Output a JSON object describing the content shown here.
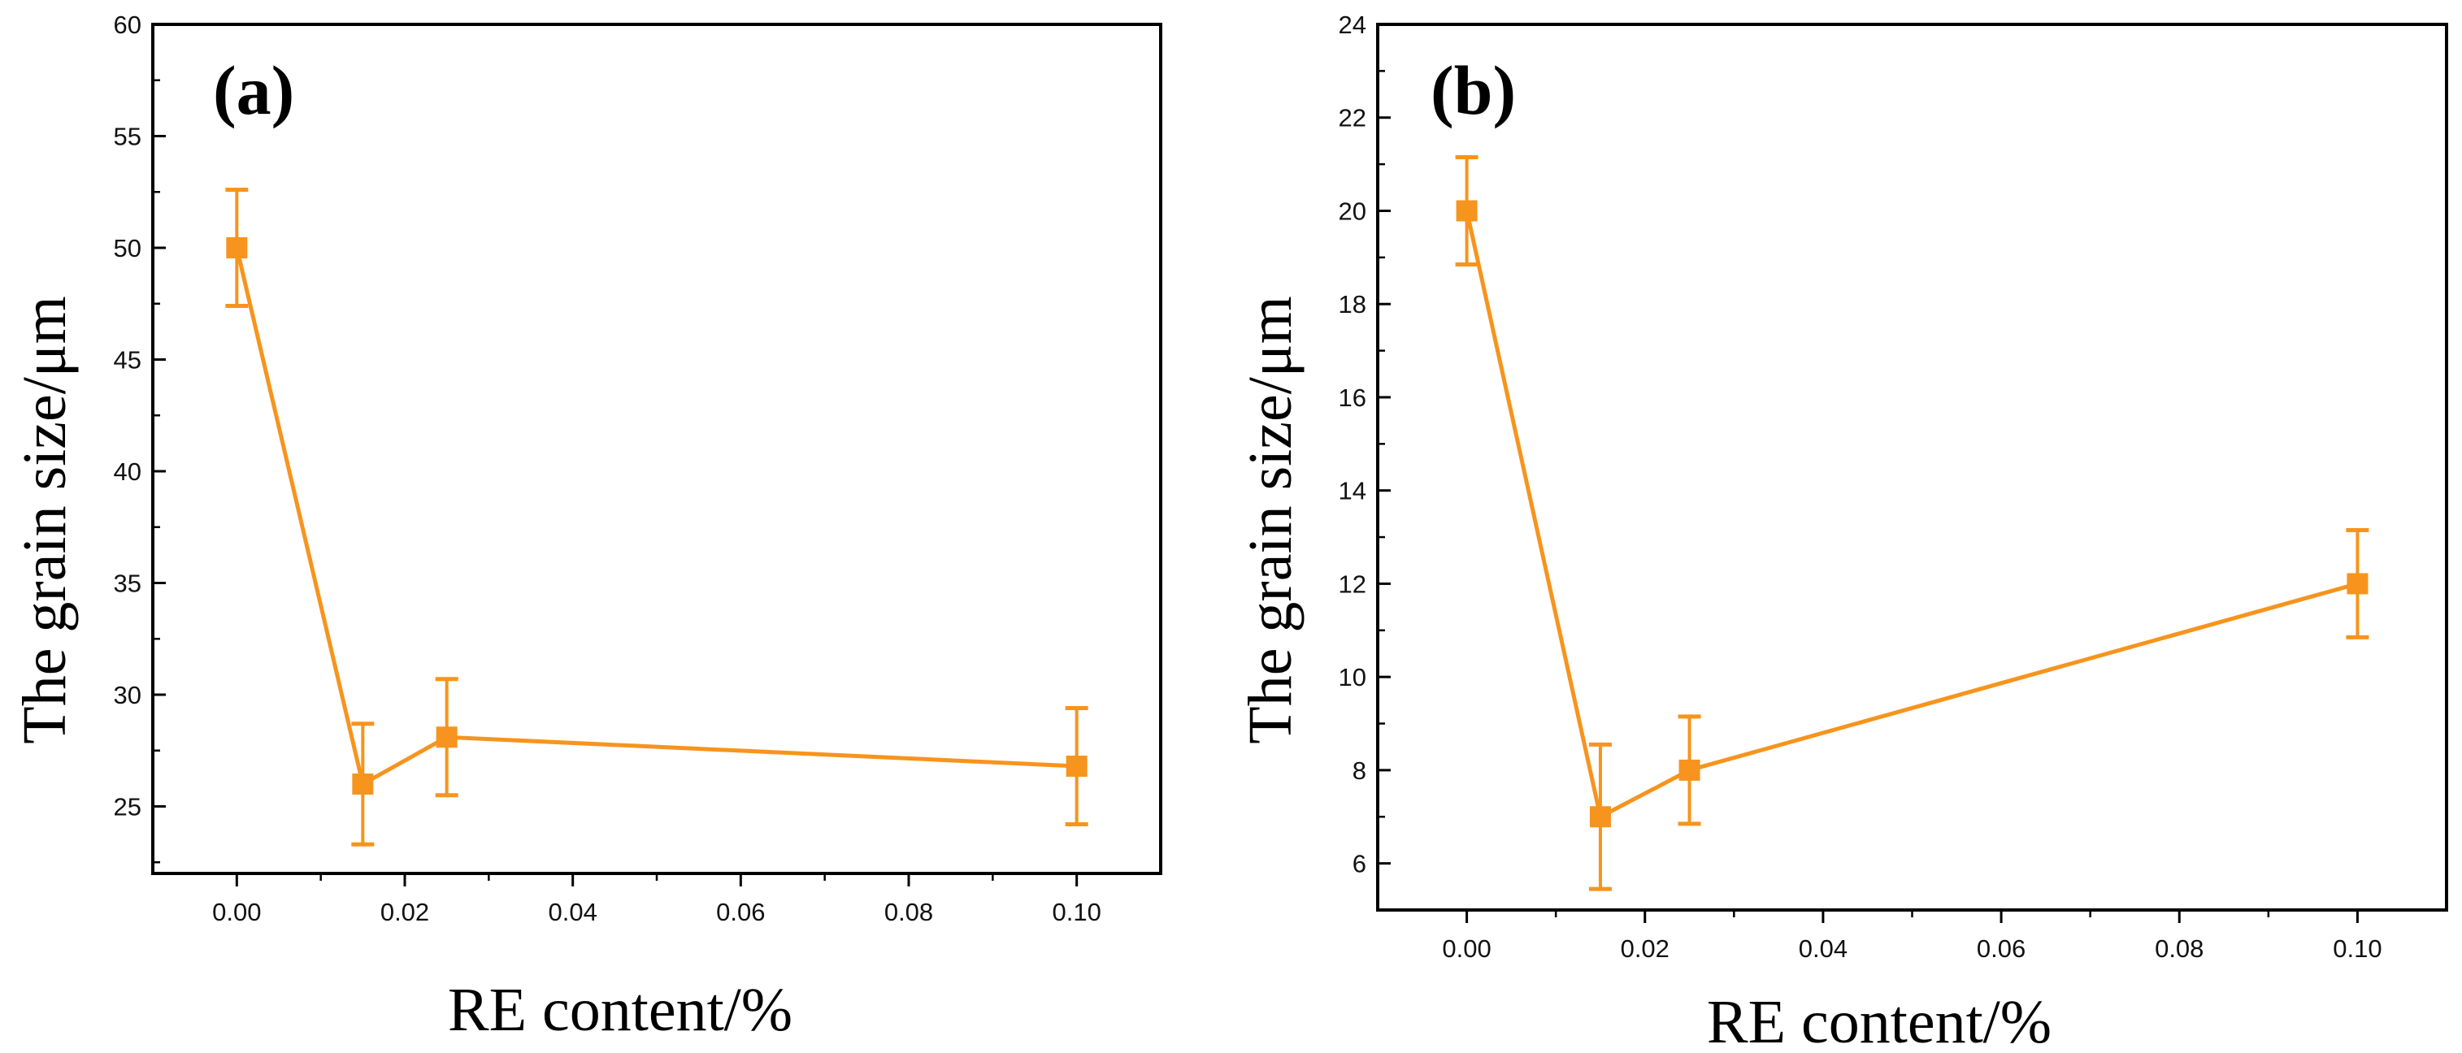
{
  "colors": {
    "series": "#F7941D",
    "axis": "#000000",
    "background": "#ffffff"
  },
  "chart_data": [
    {
      "type": "line",
      "panel_label": "(a)",
      "xlabel": "RE content/%",
      "ylabel": "The grain size/μm",
      "xlim": [
        -0.01,
        0.11
      ],
      "ylim": [
        22,
        60
      ],
      "xticks": [
        0.0,
        0.02,
        0.04,
        0.06,
        0.08,
        0.1
      ],
      "xtick_labels": [
        "0.00",
        "0.02",
        "0.04",
        "0.06",
        "0.08",
        "0.10"
      ],
      "yticks": [
        25,
        30,
        35,
        40,
        45,
        50,
        55,
        60
      ],
      "ytick_labels": [
        "25",
        "30",
        "35",
        "40",
        "45",
        "50",
        "55",
        "60"
      ],
      "grid": false,
      "series": [
        {
          "name": "grain size",
          "marker": "square",
          "x": [
            0.0,
            0.015,
            0.025,
            0.1
          ],
          "y": [
            50.0,
            26.0,
            28.1,
            26.8
          ],
          "err": [
            2.6,
            2.7,
            2.6,
            2.6
          ]
        }
      ]
    },
    {
      "type": "line",
      "panel_label": "(b)",
      "xlabel": "RE content/%",
      "ylabel": "The grain size/μm",
      "xlim": [
        -0.01,
        0.11
      ],
      "ylim": [
        5,
        24
      ],
      "xticks": [
        0.0,
        0.02,
        0.04,
        0.06,
        0.08,
        0.1
      ],
      "xtick_labels": [
        "0.00",
        "0.02",
        "0.04",
        "0.06",
        "0.08",
        "0.10"
      ],
      "yticks": [
        6,
        8,
        10,
        12,
        14,
        16,
        18,
        20,
        22,
        24
      ],
      "ytick_labels": [
        "6",
        "8",
        "10",
        "12",
        "14",
        "16",
        "18",
        "20",
        "22",
        "24"
      ],
      "grid": false,
      "series": [
        {
          "name": "grain size",
          "marker": "square",
          "x": [
            0.0,
            0.015,
            0.025,
            0.1
          ],
          "y": [
            20.0,
            7.0,
            8.0,
            12.0
          ],
          "err": [
            1.15,
            1.55,
            1.15,
            1.15
          ]
        }
      ]
    }
  ]
}
